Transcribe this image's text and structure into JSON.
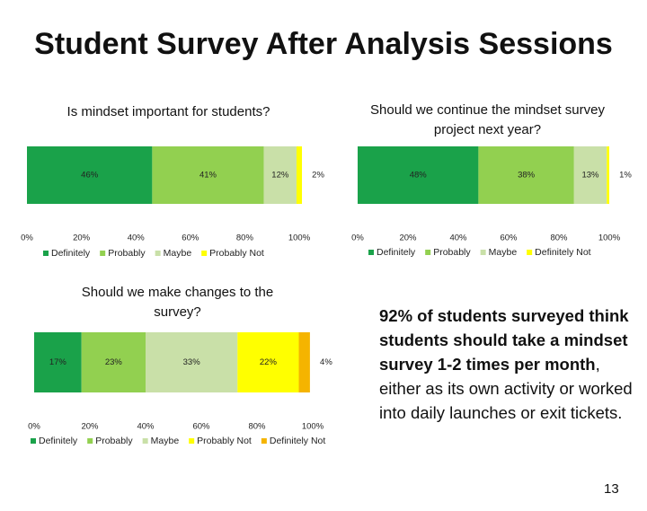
{
  "title": "Student Survey After Analysis Sessions",
  "note": {
    "bold": "92% of students surveyed think students should take a mindset survey 1-2 times per month",
    "text": ", either as its own activity or worked into daily launches or exit tickets."
  },
  "page_number": "13",
  "chart_data": [
    {
      "type": "stacked_bar_h",
      "title": "Is mindset important for students?",
      "categories": [
        null
      ],
      "series": [
        {
          "name": "Definitely",
          "color": "#1aa24a",
          "values": [
            46
          ],
          "value_labels": [
            "46%"
          ]
        },
        {
          "name": "Probably",
          "color": "#92d050",
          "values": [
            41
          ],
          "value_labels": [
            "41%"
          ]
        },
        {
          "name": "Maybe",
          "color": "#c9e0a8",
          "values": [
            12
          ],
          "value_labels": [
            "12%"
          ]
        },
        {
          "name": "Probably Not",
          "color": "#ffff00",
          "values": [
            2
          ],
          "value_labels": [
            "2%"
          ]
        }
      ],
      "xlim": [
        0,
        100
      ],
      "xticks": [
        {
          "value": 0,
          "label": "0%"
        },
        {
          "value": 20,
          "label": "20%"
        },
        {
          "value": 40,
          "label": "40%"
        },
        {
          "value": 60,
          "label": "60%"
        },
        {
          "value": 80,
          "label": "80%"
        },
        {
          "value": 100,
          "label": "100%"
        }
      ],
      "legend": "bottom"
    },
    {
      "type": "stacked_bar_h",
      "title": "Should we continue the mindset survey project next year?",
      "categories": [
        null
      ],
      "series": [
        {
          "name": "Definitely",
          "color": "#1aa24a",
          "values": [
            48
          ],
          "value_labels": [
            "48%"
          ]
        },
        {
          "name": "Probably",
          "color": "#92d050",
          "values": [
            38
          ],
          "value_labels": [
            "38%"
          ]
        },
        {
          "name": "Maybe",
          "color": "#c9e0a8",
          "values": [
            13
          ],
          "value_labels": [
            "13%"
          ]
        },
        {
          "name": "Definitely Not",
          "color": "#ffff00",
          "values": [
            1
          ],
          "value_labels": [
            "1%"
          ]
        }
      ],
      "xlim": [
        0,
        100
      ],
      "xticks": [
        {
          "value": 0,
          "label": "0%"
        },
        {
          "value": 20,
          "label": "20%"
        },
        {
          "value": 40,
          "label": "40%"
        },
        {
          "value": 60,
          "label": "60%"
        },
        {
          "value": 80,
          "label": "80%"
        },
        {
          "value": 100,
          "label": "100%"
        }
      ],
      "legend": "bottom"
    },
    {
      "type": "stacked_bar_h",
      "title": "Should we make changes to the survey?",
      "categories": [
        null
      ],
      "series": [
        {
          "name": "Definitely",
          "color": "#1aa24a",
          "values": [
            17
          ],
          "value_labels": [
            "17%"
          ]
        },
        {
          "name": "Probably",
          "color": "#92d050",
          "values": [
            23
          ],
          "value_labels": [
            "23%"
          ]
        },
        {
          "name": "Maybe",
          "color": "#c9e0a8",
          "values": [
            33
          ],
          "value_labels": [
            "33%"
          ]
        },
        {
          "name": "Probably Not",
          "color": "#ffff00",
          "values": [
            22
          ],
          "value_labels": [
            "22%"
          ]
        },
        {
          "name": "Definitely Not",
          "color": "#f5b400",
          "values": [
            4
          ],
          "value_labels": [
            "4%"
          ]
        }
      ],
      "xlim": [
        0,
        100
      ],
      "xticks": [
        {
          "value": 0,
          "label": "0%"
        },
        {
          "value": 20,
          "label": "20%"
        },
        {
          "value": 40,
          "label": "40%"
        },
        {
          "value": 60,
          "label": "60%"
        },
        {
          "value": 80,
          "label": "80%"
        },
        {
          "value": 100,
          "label": "100%"
        }
      ],
      "legend": "bottom"
    }
  ]
}
